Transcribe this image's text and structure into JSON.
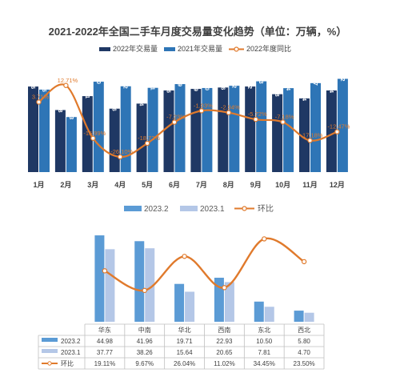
{
  "chart_data": [
    {
      "type": "bar",
      "title": "2021-2022年全国二手车月度交易量变化趋势（单位：万辆，%）",
      "categories": [
        "1月",
        "2月",
        "3月",
        "4月",
        "5月",
        "6月",
        "7月",
        "8月",
        "9月",
        "10月",
        "11月",
        "12月"
      ],
      "series": [
        {
          "name": "2022年交易量",
          "type": "bar",
          "color": "#1f3864",
          "values": [
            148.46,
            107.68,
            131.81,
            110.06,
            118.84,
            141.66,
            144.39,
            146.76,
            148.52,
            135.18,
            127.84,
            141.64
          ],
          "labels": [
            "148.46",
            "107.68",
            "131.81",
            "110.06",
            "118.84",
            "141.66",
            "144.39",
            "146.76",
            "148.52",
            "135.18",
            "127.84",
            "141.64"
          ]
        },
        {
          "name": "2021年交易量",
          "type": "bar",
          "color": "#2e75b6",
          "values": [
            143.16,
            95.53,
            156.9,
            148.92,
            146.21,
            152.69,
            145.9,
            149.82,
            157.53,
            145.64,
            154.37,
            161.82
          ],
          "labels": [
            "143.16",
            "95.53",
            "156.90",
            "148.92",
            "146.21",
            "152.69",
            "145.90",
            "149.82",
            "157.53",
            "145.64",
            "154.37",
            "161.82"
          ]
        },
        {
          "name": "2022年度同比",
          "type": "line",
          "color": "#e07a2c",
          "values": [
            3.71,
            12.71,
            -15.99,
            -26.1,
            -18.72,
            -7.23,
            -1.03,
            -2.04,
            -5.72,
            -7.18,
            -17.18,
            -12.47
          ],
          "labels": [
            "3.71%",
            "12.71%",
            "-15.99%",
            "-26.10%",
            "-18.72%",
            "-7.23%",
            "-1.03%",
            "-2.04%",
            "-5.72%",
            "-7.18%",
            "-17.18%",
            "-12.47%"
          ]
        }
      ]
    },
    {
      "type": "bar",
      "categories": [
        "华东",
        "中南",
        "华北",
        "西南",
        "东北",
        "西北"
      ],
      "series": [
        {
          "name": "2023.2",
          "type": "bar",
          "color": "#5b9bd5",
          "values": [
            44.98,
            41.96,
            19.71,
            22.93,
            10.5,
            5.8
          ],
          "labels": [
            "44.98",
            "41.96",
            "19.71",
            "22.93",
            "10.50",
            "5.80"
          ]
        },
        {
          "name": "2023.1",
          "type": "bar",
          "color": "#b4c7e7",
          "values": [
            37.77,
            38.26,
            15.64,
            20.65,
            7.81,
            4.7
          ],
          "labels": [
            "37.77",
            "38.26",
            "15.64",
            "20.65",
            "7.81",
            "4.70"
          ]
        },
        {
          "name": "环比",
          "type": "line",
          "color": "#e07a2c",
          "values": [
            19.11,
            9.67,
            26.04,
            11.02,
            34.45,
            23.5
          ],
          "labels": [
            "19.11%",
            "9.67%",
            "26.04%",
            "11.02%",
            "34.45%",
            "23.50%"
          ]
        }
      ]
    }
  ]
}
